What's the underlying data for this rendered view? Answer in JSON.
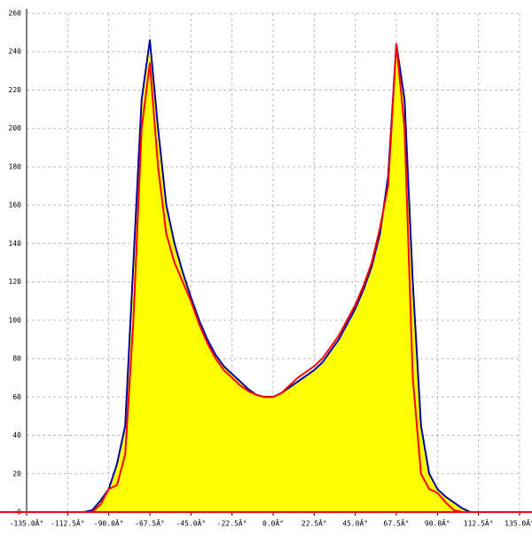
{
  "chart_data": {
    "type": "line",
    "x": [
      -108,
      -103.5,
      -99,
      -94.5,
      -90,
      -85.5,
      -81,
      -76.5,
      -72,
      -67.5,
      -63,
      -58.5,
      -54,
      -49.5,
      -45,
      -40.5,
      -36,
      -31.5,
      -27,
      -22.5,
      -18,
      -13.5,
      -9,
      -4.5,
      0,
      4.5,
      9,
      13.5,
      18,
      22.5,
      27,
      31.5,
      36,
      40.5,
      45,
      49.5,
      54,
      58.5,
      63,
      67.5,
      72,
      76.5,
      81,
      85.5,
      90,
      94.5,
      99,
      103.5,
      108
    ],
    "series": [
      {
        "color": "#0000a0",
        "fill": "#ffff00",
        "values": [
          0,
          0,
          1,
          6,
          12,
          25,
          45,
          130,
          215,
          246,
          200,
          160,
          140,
          125,
          112,
          100,
          90,
          82,
          76,
          72,
          68,
          64,
          61,
          60,
          60,
          62,
          65,
          68,
          71,
          74,
          78,
          84,
          90,
          98,
          106,
          116,
          128,
          145,
          175,
          244,
          215,
          120,
          45,
          20,
          12,
          8,
          5,
          2,
          0
        ]
      },
      {
        "color": "#ff0000",
        "values": [
          0,
          0,
          0,
          4,
          12,
          14,
          30,
          100,
          200,
          234,
          180,
          145,
          130,
          120,
          110,
          98,
          88,
          80,
          74,
          70,
          66,
          63,
          61,
          60,
          60,
          62,
          66,
          70,
          73,
          76,
          80,
          86,
          92,
          100,
          108,
          118,
          130,
          148,
          170,
          244,
          200,
          70,
          20,
          12,
          10,
          5,
          1,
          0,
          0
        ]
      }
    ],
    "xlim": [
      -135,
      135
    ],
    "xticks": [
      {
        "value": -135,
        "label": "-135.0Â°"
      },
      {
        "value": -112.5,
        "label": "-112.5Â°"
      },
      {
        "value": -90,
        "label": "-90.0Â°"
      },
      {
        "value": -67.5,
        "label": "-67.5Â°"
      },
      {
        "value": -45,
        "label": "-45.0Â°"
      },
      {
        "value": -22.5,
        "label": "-22.5Â°"
      },
      {
        "value": 0,
        "label": "0.0Â°"
      },
      {
        "value": 22.5,
        "label": "22.5Â°"
      },
      {
        "value": 45,
        "label": "45.0Â°"
      },
      {
        "value": 67.5,
        "label": "67.5Â°"
      },
      {
        "value": 90,
        "label": "90.0Â°"
      },
      {
        "value": 112.5,
        "label": "112.5Â°"
      },
      {
        "value": 135,
        "label": "135.0Â°"
      }
    ],
    "ylim": [
      0,
      260
    ],
    "yticks": [
      0,
      20,
      40,
      60,
      80,
      100,
      120,
      140,
      160,
      180,
      200,
      220,
      240,
      260
    ],
    "grid": true,
    "baseline_color": "#ff0000"
  }
}
